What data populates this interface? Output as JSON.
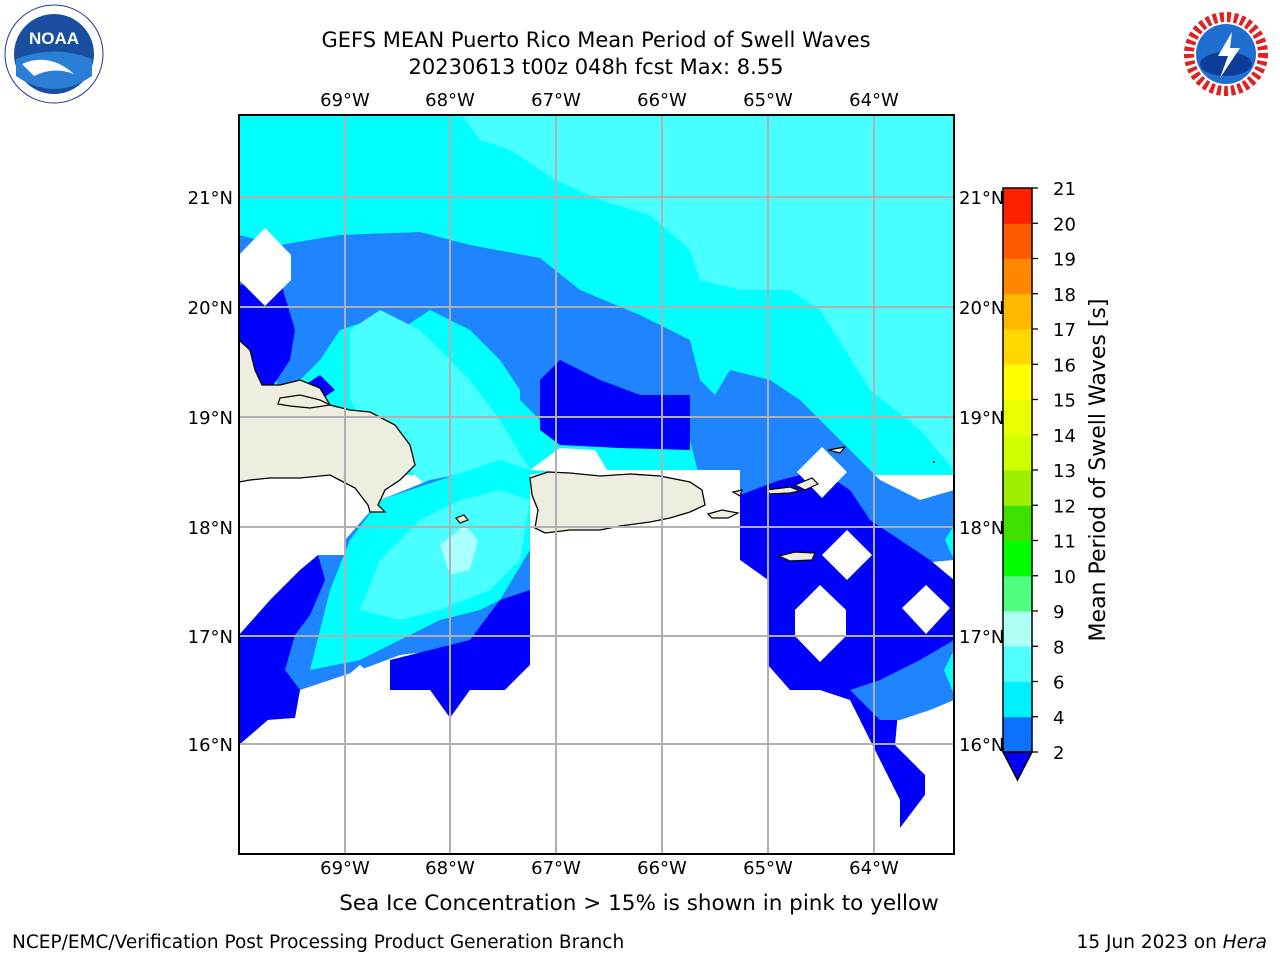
{
  "title": {
    "line1": "GEFS MEAN Puerto Rico Mean Period of Swell Waves",
    "line2": "20230613 t00z 048h fcst   Max: 8.55"
  },
  "logos": {
    "left": {
      "icon": "noaa-logo-icon",
      "text": "NOAA"
    },
    "right": {
      "icon": "nws-logo-icon"
    }
  },
  "map": {
    "lon_labels": [
      "69°W",
      "68°W",
      "67°W",
      "66°W",
      "65°W",
      "64°W"
    ],
    "lat_labels": [
      "21°N",
      "20°N",
      "19°N",
      "18°N",
      "17°N",
      "16°N"
    ],
    "colors": {
      "land": "#efede0",
      "band_2_4": "#0000ff",
      "band_4_6": "#1e84ff",
      "band_6_8": "#00ffff",
      "band_8_9": "#47ffff",
      "band_9_10": "#aaffff",
      "grid": "#b0b0b0"
    }
  },
  "colorbar": {
    "label": "Mean Period of Swell Waves [s]",
    "ticks": [
      "2",
      "4",
      "6",
      "8",
      "9",
      "10",
      "11",
      "12",
      "13",
      "14",
      "15",
      "16",
      "17",
      "18",
      "19",
      "20",
      "21"
    ],
    "colors": [
      "#0a72ff",
      "#00f0ff",
      "#50ffff",
      "#b0fff4",
      "#50ff80",
      "#00ff00",
      "#3fe000",
      "#9ff000",
      "#d0ff00",
      "#eaff00",
      "#ffff00",
      "#ffd800",
      "#ffb800",
      "#ff8800",
      "#ff5a00",
      "#ff2000"
    ],
    "under_color": "#0000ff"
  },
  "footer": {
    "ice_note": "Sea Ice Concentration > 15% is shown in pink to yellow",
    "credit": "NCEP/EMC/Verification Post Processing Product Generation Branch",
    "date": "15 Jun 2023 on ",
    "host": "Hera"
  }
}
